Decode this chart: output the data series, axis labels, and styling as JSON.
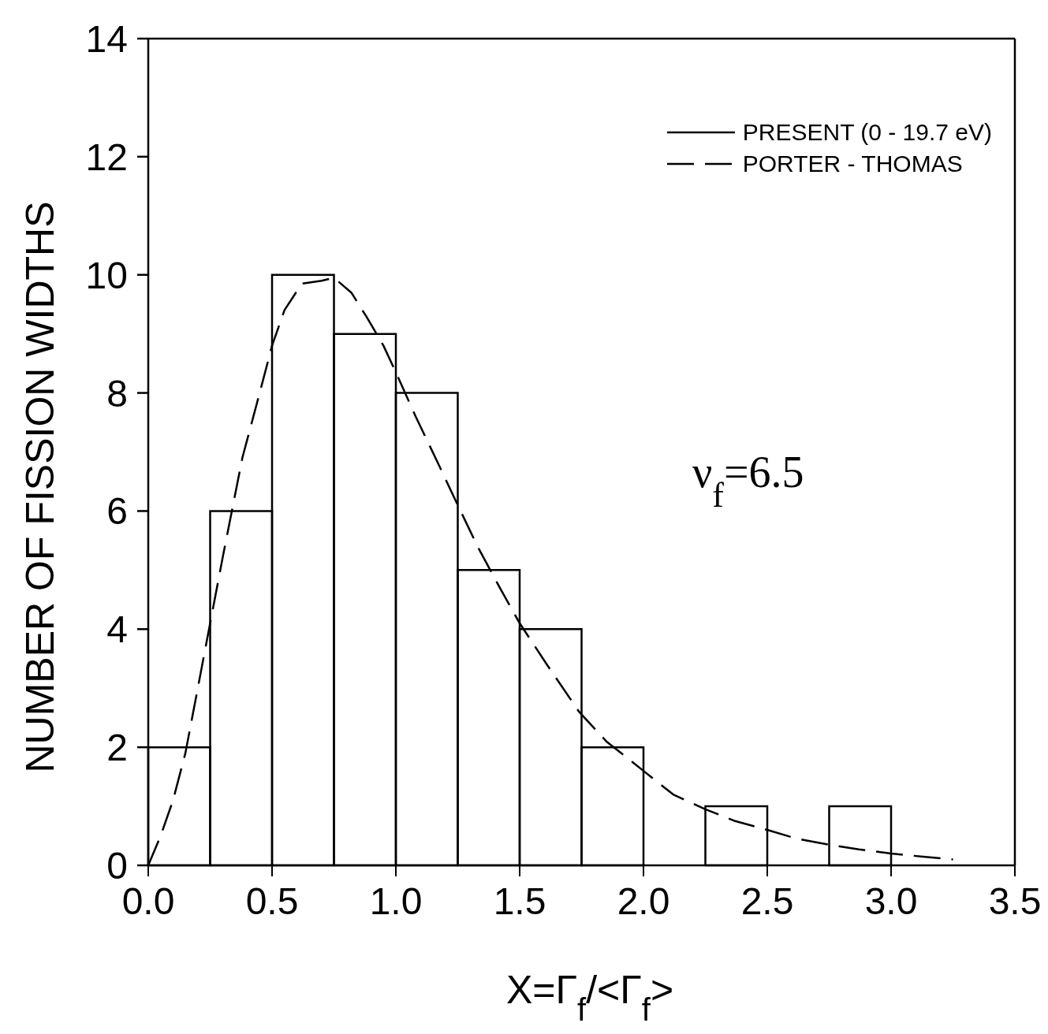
{
  "chart_data": {
    "type": "histogram",
    "xlabel": "X=Γ$_{f}$/<Γ$_{f}$>",
    "ylabel": "NUMBER OF FISSION WIDTHS",
    "xlim": [
      0,
      3.5
    ],
    "xticks": [
      {
        "value": 0,
        "label": "0.0"
      },
      {
        "value": 0.5,
        "label": "0.5"
      },
      {
        "value": 1,
        "label": "1.0"
      },
      {
        "value": 1.5,
        "label": "1.5"
      },
      {
        "value": 2,
        "label": "2.0"
      },
      {
        "value": 2.5,
        "label": "2.5"
      },
      {
        "value": 3,
        "label": "3.0"
      },
      {
        "value": 3.5,
        "label": "3.5"
      }
    ],
    "ylim": [
      0,
      14
    ],
    "yticks": [
      0,
      2,
      4,
      6,
      8,
      10,
      12,
      14
    ],
    "legend": "top right",
    "annotations": [
      "ν$_{f}$=6.5"
    ],
    "series": [
      {
        "name": "PRESENT (0 - 19.7 eV)",
        "color": "#000000",
        "bins": [
          0,
          0.25,
          0.5,
          0.75,
          1,
          1.25,
          1.5,
          1.75,
          2,
          2.25,
          2.5,
          2.75,
          3
        ],
        "values": [
          2,
          6,
          10,
          9,
          8,
          5,
          4,
          2,
          0,
          1,
          0,
          1
        ]
      },
      {
        "name": "PORTER - THOMAS",
        "type": "line",
        "color": "#000000",
        "line_style": "dashed",
        "x": [
          0,
          0.05,
          0.1,
          0.15,
          0.2,
          0.25,
          0.3,
          0.38,
          0.45,
          0.5,
          0.55,
          0.62,
          0.7,
          0.75,
          0.82,
          0.88,
          0.95,
          1,
          1.08,
          1.16,
          1.25,
          1.33,
          1.42,
          1.5,
          1.61,
          1.74,
          1.85,
          2,
          2.12,
          2.25,
          2.37,
          2.5,
          2.62,
          2.75,
          2.87,
          3,
          3.12,
          3.25
        ],
        "values": [
          0,
          0.5,
          1.1,
          1.9,
          3,
          4.1,
          5.2,
          6.9,
          8,
          8.8,
          9.4,
          9.85,
          9.9,
          9.95,
          9.7,
          9.3,
          8.8,
          8.35,
          7.6,
          6.9,
          6.1,
          5.4,
          4.7,
          4.1,
          3.4,
          2.6,
          2.1,
          1.6,
          1.2,
          0.95,
          0.75,
          0.6,
          0.45,
          0.35,
          0.27,
          0.2,
          0.15,
          0.1
        ]
      }
    ]
  }
}
